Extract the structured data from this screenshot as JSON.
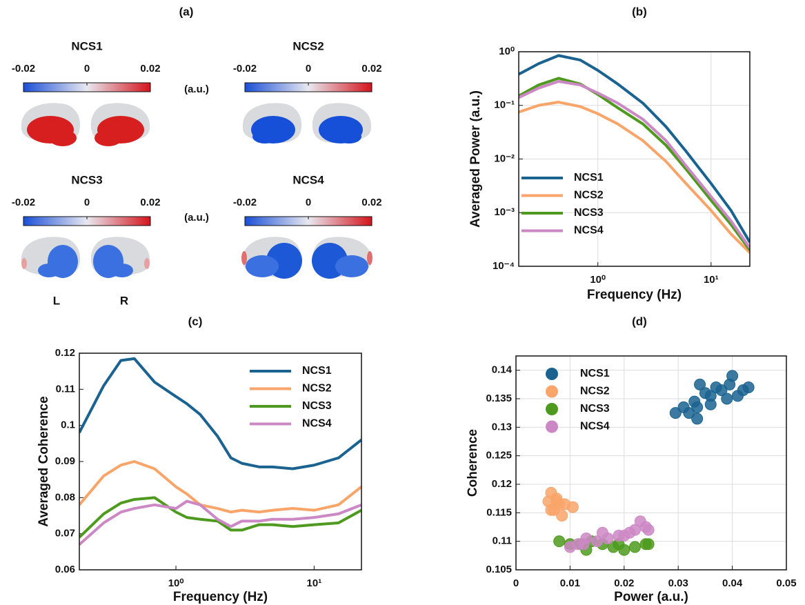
{
  "chart_data": [
    {
      "type": "brain_map",
      "panel_label": "(a)",
      "unit_label": "(a.u.)",
      "hemisphere_labels": [
        "L",
        "R"
      ],
      "clim": [
        -0.02,
        0.02
      ],
      "ticks": [
        -0.02,
        0,
        0.02
      ],
      "colormap": [
        "#1a4fd6",
        "#e8e8f0",
        "#d4141c"
      ],
      "maps": [
        "NCS1",
        "NCS2",
        "NCS3",
        "NCS4"
      ]
    },
    {
      "type": "line",
      "panel_label": "(b)",
      "x_label": "Frequency (Hz)",
      "y_label": "Averaged Power (a.u.)",
      "xscale": "log",
      "yscale": "log",
      "grid": true,
      "legend": "lower left",
      "xlim": [
        0.2,
        22
      ],
      "ylim": [
        0.0001,
        1
      ],
      "xticks": [
        {
          "value": 1,
          "label": "10⁰"
        },
        {
          "value": 10,
          "label": "10¹"
        }
      ],
      "yticks": [
        {
          "value": 0.0001,
          "label": "10⁻⁴"
        },
        {
          "value": 0.001,
          "label": "10⁻³"
        },
        {
          "value": 0.01,
          "label": "10⁻²"
        },
        {
          "value": 0.1,
          "label": "10⁻¹"
        },
        {
          "value": 1,
          "label": "10⁰"
        }
      ],
      "x": [
        0.2,
        0.3,
        0.45,
        0.7,
        1,
        1.5,
        2.5,
        4,
        6,
        10,
        15,
        22
      ],
      "series": [
        {
          "name": "NCS1",
          "color": "#1a6390",
          "values": [
            0.38,
            0.6,
            0.85,
            0.7,
            0.45,
            0.25,
            0.11,
            0.04,
            0.014,
            0.0035,
            0.0011,
            0.00028
          ]
        },
        {
          "name": "NCS2",
          "color": "#f9a56a",
          "values": [
            0.075,
            0.1,
            0.115,
            0.095,
            0.07,
            0.045,
            0.022,
            0.009,
            0.0035,
            0.0011,
            0.0004,
            0.00018
          ]
        },
        {
          "name": "NCS3",
          "color": "#4e9a1e",
          "values": [
            0.15,
            0.24,
            0.32,
            0.25,
            0.16,
            0.09,
            0.045,
            0.018,
            0.0065,
            0.0017,
            0.0006,
            0.0002
          ]
        },
        {
          "name": "NCS4",
          "color": "#cc88c4",
          "values": [
            0.14,
            0.21,
            0.28,
            0.24,
            0.17,
            0.11,
            0.055,
            0.022,
            0.0075,
            0.002,
            0.0007,
            0.00022
          ]
        }
      ]
    },
    {
      "type": "line",
      "panel_label": "(c)",
      "x_label": "Frequency (Hz)",
      "y_label": "Averaged Coherence",
      "xscale": "log",
      "grid": false,
      "legend": "upper right",
      "xlim": [
        0.2,
        22
      ],
      "ylim": [
        0.06,
        0.12
      ],
      "xticks": [
        {
          "value": 1,
          "label": "10⁰"
        },
        {
          "value": 10,
          "label": "10¹"
        }
      ],
      "yticks": [
        0.06,
        0.07,
        0.08,
        0.09,
        0.1,
        0.11,
        0.12
      ],
      "x": [
        0.2,
        0.3,
        0.4,
        0.5,
        0.7,
        1,
        1.2,
        1.5,
        2,
        2.5,
        3,
        4,
        5,
        7,
        10,
        15,
        22
      ],
      "series": [
        {
          "name": "NCS1",
          "color": "#1a6390",
          "values": [
            0.098,
            0.111,
            0.118,
            0.1185,
            0.112,
            0.108,
            0.106,
            0.103,
            0.097,
            0.091,
            0.0895,
            0.0885,
            0.0885,
            0.088,
            0.089,
            0.091,
            0.096
          ]
        },
        {
          "name": "NCS2",
          "color": "#f9a56a",
          "values": [
            0.078,
            0.086,
            0.089,
            0.09,
            0.088,
            0.083,
            0.081,
            0.078,
            0.077,
            0.076,
            0.0765,
            0.076,
            0.0765,
            0.077,
            0.0765,
            0.078,
            0.083
          ]
        },
        {
          "name": "NCS3",
          "color": "#4e9a1e",
          "values": [
            0.069,
            0.0755,
            0.0785,
            0.0795,
            0.08,
            0.076,
            0.0745,
            0.074,
            0.0735,
            0.071,
            0.071,
            0.0725,
            0.0725,
            0.072,
            0.0725,
            0.073,
            0.0765
          ]
        },
        {
          "name": "NCS4",
          "color": "#cc88c4",
          "values": [
            0.067,
            0.073,
            0.076,
            0.077,
            0.078,
            0.077,
            0.079,
            0.078,
            0.074,
            0.072,
            0.0735,
            0.0735,
            0.074,
            0.074,
            0.0745,
            0.0755,
            0.078
          ]
        }
      ]
    },
    {
      "type": "scatter",
      "panel_label": "(d)",
      "x_label": "Power (a.u.)",
      "y_label": "Coherence",
      "grid": true,
      "legend": "upper left",
      "xlim": [
        0,
        0.05
      ],
      "ylim": [
        0.105,
        0.1425
      ],
      "xticks": [
        0,
        0.01,
        0.02,
        0.03,
        0.04,
        0.05
      ],
      "yticks": [
        0.105,
        0.11,
        0.115,
        0.12,
        0.125,
        0.13,
        0.135,
        0.14
      ],
      "series": [
        {
          "name": "NCS1",
          "color": "#1a6390",
          "x": [
            0.0295,
            0.031,
            0.032,
            0.033,
            0.0335,
            0.034,
            0.035,
            0.036,
            0.037,
            0.038,
            0.039,
            0.04,
            0.041,
            0.042,
            0.043,
            0.0335,
            0.036,
            0.0395
          ],
          "values": [
            0.1325,
            0.1335,
            0.1325,
            0.1345,
            0.1315,
            0.1375,
            0.136,
            0.1355,
            0.137,
            0.1365,
            0.135,
            0.139,
            0.1355,
            0.1365,
            0.137,
            0.1335,
            0.134,
            0.1375
          ]
        },
        {
          "name": "NCS2",
          "color": "#f9a56a",
          "x": [
            0.006,
            0.0065,
            0.007,
            0.0075,
            0.008,
            0.0085,
            0.009,
            0.0065,
            0.0075,
            0.0105
          ],
          "values": [
            0.117,
            0.1185,
            0.1155,
            0.117,
            0.1165,
            0.1145,
            0.1165,
            0.1155,
            0.1175,
            0.116
          ]
        },
        {
          "name": "NCS3",
          "color": "#4e9a1e",
          "x": [
            0.008,
            0.01,
            0.012,
            0.014,
            0.016,
            0.018,
            0.02,
            0.022,
            0.024,
            0.0245,
            0.013,
            0.019
          ],
          "values": [
            0.11,
            0.1095,
            0.1095,
            0.11,
            0.1095,
            0.109,
            0.1085,
            0.109,
            0.1095,
            0.1095,
            0.1085,
            0.1095
          ]
        },
        {
          "name": "NCS4",
          "color": "#cc88c4",
          "x": [
            0.01,
            0.0115,
            0.013,
            0.015,
            0.017,
            0.019,
            0.02,
            0.021,
            0.022,
            0.023,
            0.024,
            0.0245,
            0.016,
            0.0125
          ],
          "values": [
            0.109,
            0.1095,
            0.1105,
            0.11,
            0.1105,
            0.111,
            0.111,
            0.1115,
            0.112,
            0.1135,
            0.1125,
            0.112,
            0.1115,
            0.1095
          ]
        }
      ]
    }
  ]
}
